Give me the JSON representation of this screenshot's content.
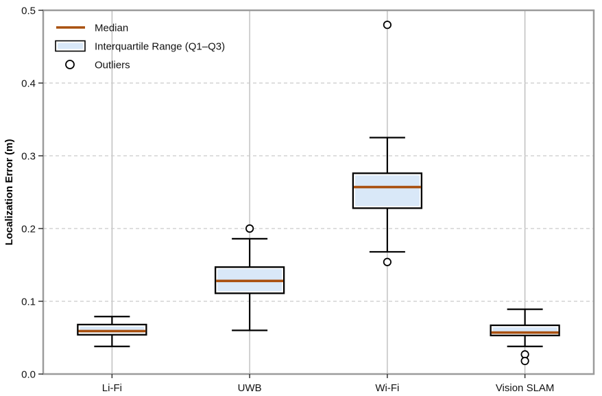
{
  "chart_data": {
    "type": "boxplot",
    "title": "",
    "xlabel": "",
    "ylabel": "Localization Error (m)",
    "ylim": [
      0.0,
      0.5
    ],
    "yticks": [
      0.0,
      0.1,
      0.2,
      0.3,
      0.4,
      0.5
    ],
    "ytick_labels": [
      "0.0",
      "0.1",
      "0.2",
      "0.3",
      "0.4",
      "0.5"
    ],
    "categories": [
      "Li-Fi",
      "UWB",
      "Wi-Fi",
      "Vision SLAM"
    ],
    "series": [
      {
        "category": "Li-Fi",
        "whisker_low": 0.038,
        "q1": 0.054,
        "median": 0.059,
        "q3": 0.068,
        "whisker_high": 0.079,
        "outliers": []
      },
      {
        "category": "UWB",
        "whisker_low": 0.06,
        "q1": 0.111,
        "median": 0.128,
        "q3": 0.147,
        "whisker_high": 0.186,
        "outliers": [
          0.2
        ]
      },
      {
        "category": "Wi-Fi",
        "whisker_low": 0.168,
        "q1": 0.228,
        "median": 0.257,
        "q3": 0.276,
        "whisker_high": 0.325,
        "outliers": [
          0.48,
          0.154
        ]
      },
      {
        "category": "Vision SLAM",
        "whisker_low": 0.038,
        "q1": 0.053,
        "median": 0.057,
        "q3": 0.067,
        "whisker_high": 0.089,
        "outliers": [
          0.027,
          0.018
        ]
      }
    ],
    "legend": {
      "position": "upper-left",
      "frame": false,
      "items": [
        {
          "label": "Median",
          "swatch": "line"
        },
        {
          "label": "Interquartile Range (Q1–Q3)",
          "swatch": "box"
        },
        {
          "label": "Outliers",
          "swatch": "circle"
        }
      ]
    },
    "grid": {
      "horizontal": "dashed",
      "vertical": "solid"
    },
    "style": {
      "median_color": "#a9500f",
      "box_fill": "#d9e8f8",
      "box_edge": "#000000",
      "whisker_color": "#000000",
      "outlier_fill": "#ffffff",
      "outlier_edge": "#000000",
      "vgrid_color": "#b3b3b3",
      "hgrid_color": "#c9c9c9",
      "spine_color": "#9b9b9b",
      "tick_color": "#333333",
      "text_color": "#111111",
      "background": "#ffffff"
    }
  }
}
